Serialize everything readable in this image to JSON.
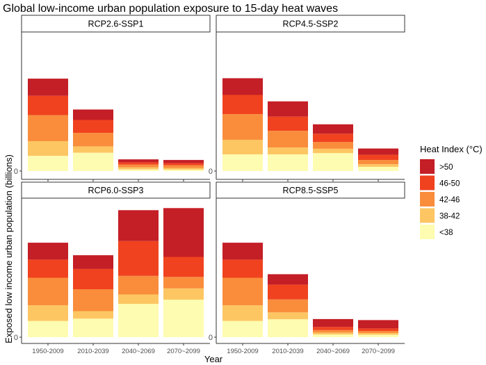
{
  "chart_data": {
    "type": "bar",
    "stacked": true,
    "title": "Global low-income urban population exposure to 15-day heat waves",
    "xlabel": "Year",
    "ylabel": "Exposed low income urban population (billions)",
    "y_tick_labels": [
      "0"
    ],
    "categories": [
      "1950-2009",
      "2010-2039",
      "2040~2069",
      "2070~2099"
    ],
    "legend": {
      "title": "Heat Index (°C)",
      "entries": [
        ">50",
        "46-50",
        "42-46",
        "38-42",
        "<38"
      ],
      "placement": "right"
    },
    "panels": [
      {
        "name": "RCP2.6-SSP1",
        "series": [
          {
            "name": "<38",
            "values": [
              0.73,
              0.88,
              0.08,
              0.07
            ]
          },
          {
            "name": "38-42",
            "values": [
              0.7,
              0.3,
              0.1,
              0.08
            ]
          },
          {
            "name": "42-46",
            "values": [
              1.25,
              0.65,
              0.13,
              0.13
            ]
          },
          {
            "name": "46-50",
            "values": [
              0.93,
              0.62,
              0.11,
              0.1
            ]
          },
          {
            "name": ">50",
            "values": [
              0.82,
              0.5,
              0.14,
              0.15
            ]
          }
        ]
      },
      {
        "name": "RCP4.5-SSP2",
        "series": [
          {
            "name": "<38",
            "values": [
              0.8,
              0.8,
              0.86,
              0.2
            ]
          },
          {
            "name": "38-42",
            "values": [
              0.7,
              0.33,
              0.21,
              0.13
            ]
          },
          {
            "name": "42-46",
            "values": [
              1.23,
              0.8,
              0.32,
              0.2
            ]
          },
          {
            "name": "46-50",
            "values": [
              0.92,
              0.68,
              0.4,
              0.25
            ]
          },
          {
            "name": ">50",
            "values": [
              0.8,
              0.73,
              0.45,
              0.3
            ]
          }
        ]
      },
      {
        "name": "RCP6.0-SSP3",
        "series": [
          {
            "name": "<38",
            "values": [
              0.78,
              0.89,
              1.6,
              1.8
            ]
          },
          {
            "name": "38-42",
            "values": [
              0.75,
              0.36,
              0.45,
              0.54
            ]
          },
          {
            "name": "42-46",
            "values": [
              1.32,
              1.05,
              0.89,
              0.55
            ]
          },
          {
            "name": "46-50",
            "values": [
              0.87,
              0.97,
              1.67,
              0.96
            ]
          },
          {
            "name": ">50",
            "values": [
              0.81,
              0.66,
              1.48,
              2.34
            ]
          }
        ]
      },
      {
        "name": "RCP8.5-SSP5",
        "series": [
          {
            "name": "<38",
            "values": [
              0.78,
              0.86,
              0.13,
              0.12
            ]
          },
          {
            "name": "38-42",
            "values": [
              0.75,
              0.33,
              0.09,
              0.08
            ]
          },
          {
            "name": "42-46",
            "values": [
              1.32,
              0.62,
              0.12,
              0.1
            ]
          },
          {
            "name": "46-50",
            "values": [
              0.87,
              0.71,
              0.15,
              0.12
            ]
          },
          {
            "name": ">50",
            "values": [
              0.81,
              0.5,
              0.38,
              0.4
            ]
          }
        ]
      }
    ],
    "ylim": [
      0,
      6.4
    ],
    "colors": {
      ">50": "#c41e26",
      "46-50": "#f0421f",
      "42-46": "#f98d3c",
      "38-42": "#fdc663",
      "<38": "#fefcb0"
    }
  }
}
